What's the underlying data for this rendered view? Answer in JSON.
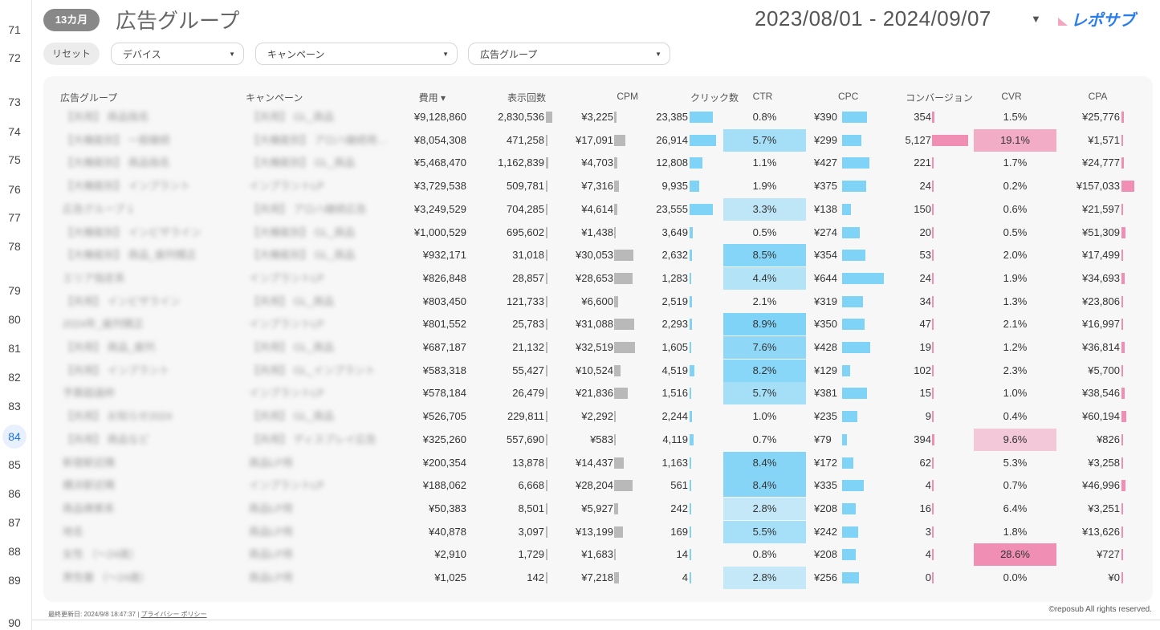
{
  "gutter": {
    "rows": [
      {
        "label": "71"
      },
      {
        "label": "72"
      },
      {
        "label": "73"
      },
      {
        "label": "74"
      },
      {
        "label": "75"
      },
      {
        "label": "76"
      },
      {
        "label": "77"
      },
      {
        "label": "78"
      },
      {
        "label": "79"
      },
      {
        "label": "80"
      },
      {
        "label": "81"
      },
      {
        "label": "82"
      },
      {
        "label": "83"
      },
      {
        "label": "84",
        "active": true
      },
      {
        "label": "85"
      },
      {
        "label": "86"
      },
      {
        "label": "87"
      },
      {
        "label": "88"
      },
      {
        "label": "89"
      },
      {
        "label": "90"
      }
    ]
  },
  "header": {
    "period_badge": "13カ月",
    "title": "広告グループ",
    "date_range": "2023/08/01 - 2024/09/07",
    "logo_text": "レポサブ"
  },
  "filters": {
    "reset_label": "リセット",
    "device": "デバイス",
    "campaign": "キャンペーン",
    "adgroup": "広告グループ"
  },
  "colors": {
    "gray_bar": "#b9b9b9",
    "blue_bar": "#7fd3f7",
    "pink_bar": "#f08fb3",
    "blue_highlight": "#7fd3f7",
    "pink_highlight": "#f08fb3"
  },
  "table": {
    "columns": [
      "広告グループ",
      "キャンペーン",
      "費用 ▾",
      "表示回数",
      "CPM",
      "クリック数",
      "CTR",
      "CPC",
      "コンバージョン",
      "CVR",
      "CPA"
    ],
    "rows": [
      {
        "adgroup": "【共用】 商品指名",
        "campaign": "【共用】 GL_商品",
        "cost": "¥9,128,860",
        "imp": "2,830,536",
        "cpm": "¥3,225",
        "clicks": "23,385",
        "ctr": "0.8%",
        "cpc": "¥390",
        "conv": "354",
        "cvr": "1.5%",
        "cpa": "¥25,776",
        "imp_v": 2830536,
        "cpm_v": 3225,
        "clicks_v": 23385,
        "ctr_v": 0.8,
        "cpc_v": 390,
        "conv_v": 354,
        "cvr_v": 1.5,
        "cpa_v": 25776
      },
      {
        "adgroup": "【大機能別】 一般継続",
        "campaign": "【大機能別】 アロハ継続用…",
        "cost": "¥8,054,308",
        "imp": "471,258",
        "cpm": "¥17,091",
        "clicks": "26,914",
        "ctr": "5.7%",
        "cpc": "¥299",
        "conv": "5,127",
        "cvr": "19.1%",
        "cpa": "¥1,571",
        "imp_v": 471258,
        "cpm_v": 17091,
        "clicks_v": 26914,
        "ctr_v": 5.7,
        "cpc_v": 299,
        "conv_v": 5127,
        "cvr_v": 19.1,
        "cpa_v": 1571
      },
      {
        "adgroup": "【大機能別】 商品指名",
        "campaign": "【大機能別】 GL_商品",
        "cost": "¥5,468,470",
        "imp": "1,162,839",
        "cpm": "¥4,703",
        "clicks": "12,808",
        "ctr": "1.1%",
        "cpc": "¥427",
        "conv": "221",
        "cvr": "1.7%",
        "cpa": "¥24,777",
        "imp_v": 1162839,
        "cpm_v": 4703,
        "clicks_v": 12808,
        "ctr_v": 1.1,
        "cpc_v": 427,
        "conv_v": 221,
        "cvr_v": 1.7,
        "cpa_v": 24777
      },
      {
        "adgroup": "【大機能別】 インプラント",
        "campaign": "インプラントLP",
        "cost": "¥3,729,538",
        "imp": "509,781",
        "cpm": "¥7,316",
        "clicks": "9,935",
        "ctr": "1.9%",
        "cpc": "¥375",
        "conv": "24",
        "cvr": "0.2%",
        "cpa": "¥157,033",
        "imp_v": 509781,
        "cpm_v": 7316,
        "clicks_v": 9935,
        "ctr_v": 1.9,
        "cpc_v": 375,
        "conv_v": 24,
        "cvr_v": 0.2,
        "cpa_v": 157033
      },
      {
        "adgroup": "広告グループ 1",
        "campaign": "【共用】 アロハ継続広告",
        "cost": "¥3,249,529",
        "imp": "704,285",
        "cpm": "¥4,614",
        "clicks": "23,555",
        "ctr": "3.3%",
        "cpc": "¥138",
        "conv": "150",
        "cvr": "0.6%",
        "cpa": "¥21,597",
        "imp_v": 704285,
        "cpm_v": 4614,
        "clicks_v": 23555,
        "ctr_v": 3.3,
        "cpc_v": 138,
        "conv_v": 150,
        "cvr_v": 0.6,
        "cpa_v": 21597
      },
      {
        "adgroup": "【大機能別】 インビザライン",
        "campaign": "【大機能別】 GL_商品",
        "cost": "¥1,000,529",
        "imp": "695,602",
        "cpm": "¥1,438",
        "clicks": "3,649",
        "ctr": "0.5%",
        "cpc": "¥274",
        "conv": "20",
        "cvr": "0.5%",
        "cpa": "¥51,309",
        "imp_v": 695602,
        "cpm_v": 1438,
        "clicks_v": 3649,
        "ctr_v": 0.5,
        "cpc_v": 274,
        "conv_v": 20,
        "cvr_v": 0.5,
        "cpa_v": 51309
      },
      {
        "adgroup": "【大機能別】 商品_歯列矯正",
        "campaign": "【大機能別】 GL_商品",
        "cost": "¥932,171",
        "imp": "31,018",
        "cpm": "¥30,053",
        "clicks": "2,632",
        "ctr": "8.5%",
        "cpc": "¥354",
        "conv": "53",
        "cvr": "2.0%",
        "cpa": "¥17,499",
        "imp_v": 31018,
        "cpm_v": 30053,
        "clicks_v": 2632,
        "ctr_v": 8.5,
        "cpc_v": 354,
        "conv_v": 53,
        "cvr_v": 2.0,
        "cpa_v": 17499
      },
      {
        "adgroup": "エリア指定系",
        "campaign": "インプラントLP",
        "cost": "¥826,848",
        "imp": "28,857",
        "cpm": "¥28,653",
        "clicks": "1,283",
        "ctr": "4.4%",
        "cpc": "¥644",
        "conv": "24",
        "cvr": "1.9%",
        "cpa": "¥34,693",
        "imp_v": 28857,
        "cpm_v": 28653,
        "clicks_v": 1283,
        "ctr_v": 4.4,
        "cpc_v": 644,
        "conv_v": 24,
        "cvr_v": 1.9,
        "cpa_v": 34693
      },
      {
        "adgroup": "【共用】 インビザライン",
        "campaign": "【共用】 GL_商品",
        "cost": "¥803,450",
        "imp": "121,733",
        "cpm": "¥6,600",
        "clicks": "2,519",
        "ctr": "2.1%",
        "cpc": "¥319",
        "conv": "34",
        "cvr": "1.3%",
        "cpa": "¥23,806",
        "imp_v": 121733,
        "cpm_v": 6600,
        "clicks_v": 2519,
        "ctr_v": 2.1,
        "cpc_v": 319,
        "conv_v": 34,
        "cvr_v": 1.3,
        "cpa_v": 23806
      },
      {
        "adgroup": "2024年_歯列矯正",
        "campaign": "インプラントLP",
        "cost": "¥801,552",
        "imp": "25,783",
        "cpm": "¥31,088",
        "clicks": "2,293",
        "ctr": "8.9%",
        "cpc": "¥350",
        "conv": "47",
        "cvr": "2.1%",
        "cpa": "¥16,997",
        "imp_v": 25783,
        "cpm_v": 31088,
        "clicks_v": 2293,
        "ctr_v": 8.9,
        "cpc_v": 350,
        "conv_v": 47,
        "cvr_v": 2.1,
        "cpa_v": 16997
      },
      {
        "adgroup": "【共用】 商品_歯列",
        "campaign": "【共用】 GL_商品",
        "cost": "¥687,187",
        "imp": "21,132",
        "cpm": "¥32,519",
        "clicks": "1,605",
        "ctr": "7.6%",
        "cpc": "¥428",
        "conv": "19",
        "cvr": "1.2%",
        "cpa": "¥36,814",
        "imp_v": 21132,
        "cpm_v": 32519,
        "clicks_v": 1605,
        "ctr_v": 7.6,
        "cpc_v": 428,
        "conv_v": 19,
        "cvr_v": 1.2,
        "cpa_v": 36814
      },
      {
        "adgroup": "【共用】 インプラント",
        "campaign": "【共用】 GL_インプラント",
        "cost": "¥583,318",
        "imp": "55,427",
        "cpm": "¥10,524",
        "clicks": "4,519",
        "ctr": "8.2%",
        "cpc": "¥129",
        "conv": "102",
        "cvr": "2.3%",
        "cpa": "¥5,700",
        "imp_v": 55427,
        "cpm_v": 10524,
        "clicks_v": 4519,
        "ctr_v": 8.2,
        "cpc_v": 129,
        "conv_v": 102,
        "cvr_v": 2.3,
        "cpa_v": 5700
      },
      {
        "adgroup": "予算超過枠",
        "campaign": "インプラントLP",
        "cost": "¥578,184",
        "imp": "26,479",
        "cpm": "¥21,836",
        "clicks": "1,516",
        "ctr": "5.7%",
        "cpc": "¥381",
        "conv": "15",
        "cvr": "1.0%",
        "cpa": "¥38,546",
        "imp_v": 26479,
        "cpm_v": 21836,
        "clicks_v": 1516,
        "ctr_v": 5.7,
        "cpc_v": 381,
        "conv_v": 15,
        "cvr_v": 1.0,
        "cpa_v": 38546
      },
      {
        "adgroup": "【共用】 お知らせ2024",
        "campaign": "【共用】 GL_商品",
        "cost": "¥526,705",
        "imp": "229,811",
        "cpm": "¥2,292",
        "clicks": "2,244",
        "ctr": "1.0%",
        "cpc": "¥235",
        "conv": "9",
        "cvr": "0.4%",
        "cpa": "¥60,194",
        "imp_v": 229811,
        "cpm_v": 2292,
        "clicks_v": 2244,
        "ctr_v": 1.0,
        "cpc_v": 235,
        "conv_v": 9,
        "cvr_v": 0.4,
        "cpa_v": 60194
      },
      {
        "adgroup": "【共用】 商品など",
        "campaign": "【共用】 ディスプレイ広告",
        "cost": "¥325,260",
        "imp": "557,690",
        "cpm": "¥583",
        "clicks": "4,119",
        "ctr": "0.7%",
        "cpc": "¥79",
        "conv": "394",
        "cvr": "9.6%",
        "cpa": "¥826",
        "imp_v": 557690,
        "cpm_v": 583,
        "clicks_v": 4119,
        "ctr_v": 0.7,
        "cpc_v": 79,
        "conv_v": 394,
        "cvr_v": 9.6,
        "cpa_v": 826
      },
      {
        "adgroup": "新宿駅近隣",
        "campaign": "商品LP用",
        "cost": "¥200,354",
        "imp": "13,878",
        "cpm": "¥14,437",
        "clicks": "1,163",
        "ctr": "8.4%",
        "cpc": "¥172",
        "conv": "62",
        "cvr": "5.3%",
        "cpa": "¥3,258",
        "imp_v": 13878,
        "cpm_v": 14437,
        "clicks_v": 1163,
        "ctr_v": 8.4,
        "cpc_v": 172,
        "conv_v": 62,
        "cvr_v": 5.3,
        "cpa_v": 3258
      },
      {
        "adgroup": "横浜駅近隣",
        "campaign": "インプラントLP",
        "cost": "¥188,062",
        "imp": "6,668",
        "cpm": "¥28,204",
        "clicks": "561",
        "ctr": "8.4%",
        "cpc": "¥335",
        "conv": "4",
        "cvr": "0.7%",
        "cpa": "¥46,996",
        "imp_v": 6668,
        "cpm_v": 28204,
        "clicks_v": 561,
        "ctr_v": 8.4,
        "cpc_v": 335,
        "conv_v": 4,
        "cvr_v": 0.7,
        "cpa_v": 46996
      },
      {
        "adgroup": "商品検索系",
        "campaign": "商品LP用",
        "cost": "¥50,383",
        "imp": "8,501",
        "cpm": "¥5,927",
        "clicks": "242",
        "ctr": "2.8%",
        "cpc": "¥208",
        "conv": "16",
        "cvr": "6.4%",
        "cpa": "¥3,251",
        "imp_v": 8501,
        "cpm_v": 5927,
        "clicks_v": 242,
        "ctr_v": 2.8,
        "cpc_v": 208,
        "conv_v": 16,
        "cvr_v": 6.4,
        "cpa_v": 3251
      },
      {
        "adgroup": "地名",
        "campaign": "商品LP用",
        "cost": "¥40,878",
        "imp": "3,097",
        "cpm": "¥13,199",
        "clicks": "169",
        "ctr": "5.5%",
        "cpc": "¥242",
        "conv": "3",
        "cvr": "1.8%",
        "cpa": "¥13,626",
        "imp_v": 3097,
        "cpm_v": 13199,
        "clicks_v": 169,
        "ctr_v": 5.5,
        "cpc_v": 242,
        "conv_v": 3,
        "cvr_v": 1.8,
        "cpa_v": 13626
      },
      {
        "adgroup": "女性 （〜24歳）",
        "campaign": "商品LP用",
        "cost": "¥2,910",
        "imp": "1,729",
        "cpm": "¥1,683",
        "clicks": "14",
        "ctr": "0.8%",
        "cpc": "¥208",
        "conv": "4",
        "cvr": "28.6%",
        "cpa": "¥727",
        "imp_v": 1729,
        "cpm_v": 1683,
        "clicks_v": 14,
        "ctr_v": 0.8,
        "cpc_v": 208,
        "conv_v": 4,
        "cvr_v": 28.6,
        "cpa_v": 727
      },
      {
        "adgroup": "男性層 （〜24歳）",
        "campaign": "商品LP用",
        "cost": "¥1,025",
        "imp": "142",
        "cpm": "¥7,218",
        "clicks": "4",
        "ctr": "2.8%",
        "cpc": "¥256",
        "conv": "0",
        "cvr": "0.0%",
        "cpa": "¥0",
        "imp_v": 142,
        "cpm_v": 7218,
        "clicks_v": 4,
        "ctr_v": 2.8,
        "cpc_v": 256,
        "conv_v": 0,
        "cvr_v": 0.0,
        "cpa_v": 0
      }
    ]
  },
  "footer": {
    "updated": "最終更新日: 2024/9/8 18:47:37",
    "separator": "|",
    "privacy": "プライバシー ポリシー",
    "copyright": "©reposub All rights reserved."
  }
}
